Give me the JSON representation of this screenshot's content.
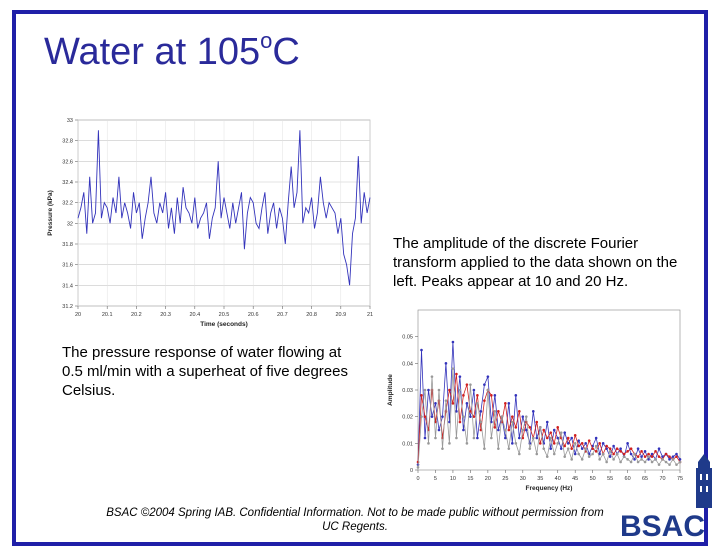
{
  "slide": {
    "title": "Water at 105",
    "title_sup": "o",
    "title_suffix": "C",
    "caption_right": "The amplitude of the discrete Fourier transform applied to the data shown on the left.  Peaks appear at 10 and 20 Hz.",
    "caption_left": "The pressure response of water flowing at 0.5 ml/min with a superheat of five degrees Celsius.",
    "footer": "BSAC ©2004 Spring IAB.  Confidential Information.  Not to be made public without permission from UC Regents.",
    "logo_text": "BSAC",
    "colors": {
      "frame": "#1f1fa8",
      "title": "#2a2a9a",
      "series_blue": "#3333bb",
      "series_red": "#d02020",
      "series_gray": "#999999",
      "logo": "#1f3a8a"
    }
  },
  "chart_data": [
    {
      "type": "line",
      "xlabel": "Time (seconds)",
      "ylabel": "Pressure (kPa)",
      "xlim": [
        20,
        21
      ],
      "ylim": [
        31.2,
        33
      ],
      "xticks": [
        "20",
        "20.1",
        "20.2",
        "20.3",
        "20.4",
        "20.5",
        "20.6",
        "20.7",
        "20.8",
        "20.9",
        "21"
      ],
      "yticks": [
        "31.2",
        "31.4",
        "31.6",
        "31.8",
        "32",
        "32.2",
        "32.4",
        "32.6",
        "32.8",
        "33"
      ],
      "grid": true,
      "series": [
        {
          "x": [
            20.0,
            20.01,
            20.02,
            20.03,
            20.04,
            20.05,
            20.06,
            20.07,
            20.08,
            20.09,
            20.1,
            20.11,
            20.12,
            20.13,
            20.14,
            20.15,
            20.16,
            20.17,
            20.18,
            20.19,
            20.2,
            20.21,
            20.22,
            20.23,
            20.24,
            20.25,
            20.26,
            20.27,
            20.28,
            20.29,
            20.3,
            20.31,
            20.32,
            20.33,
            20.34,
            20.35,
            20.36,
            20.37,
            20.38,
            20.39,
            20.4,
            20.41,
            20.42,
            20.43,
            20.44,
            20.45,
            20.46,
            20.47,
            20.48,
            20.49,
            20.5,
            20.51,
            20.52,
            20.53,
            20.54,
            20.55,
            20.56,
            20.57,
            20.58,
            20.59,
            20.6,
            20.61,
            20.62,
            20.63,
            20.64,
            20.65,
            20.66,
            20.67,
            20.68,
            20.69,
            20.7,
            20.71,
            20.72,
            20.73,
            20.74,
            20.75,
            20.76,
            20.77,
            20.78,
            20.79,
            20.8,
            20.81,
            20.82,
            20.83,
            20.84,
            20.85,
            20.86,
            20.87,
            20.88,
            20.89,
            20.9,
            20.91,
            20.92,
            20.93,
            20.94,
            20.95,
            20.96,
            20.97,
            20.98,
            20.99,
            21.0
          ],
          "values": [
            32.05,
            32.15,
            32.3,
            31.9,
            32.45,
            32.0,
            32.1,
            32.9,
            32.05,
            32.2,
            32.15,
            32.0,
            32.25,
            32.1,
            32.45,
            32.05,
            32.2,
            32.1,
            31.95,
            32.3,
            32.1,
            32.2,
            31.85,
            32.05,
            32.2,
            32.45,
            32.1,
            32.0,
            32.2,
            32.1,
            32.3,
            31.95,
            32.15,
            31.9,
            32.25,
            32.0,
            32.35,
            32.15,
            32.1,
            32.0,
            32.25,
            31.95,
            32.05,
            32.1,
            32.2,
            31.85,
            32.05,
            32.15,
            32.6,
            32.05,
            32.25,
            32.1,
            31.95,
            32.2,
            32.0,
            32.15,
            32.3,
            31.75,
            32.1,
            32.25,
            32.2,
            32.0,
            31.95,
            32.15,
            32.3,
            31.9,
            32.1,
            32.2,
            31.95,
            32.15,
            32.05,
            31.8,
            32.2,
            32.55,
            32.15,
            32.3,
            32.9,
            32.0,
            32.15,
            32.1,
            32.25,
            31.95,
            32.1,
            32.45,
            32.2,
            32.05,
            32.2,
            32.15,
            32.1,
            31.9,
            32.05,
            31.7,
            31.6,
            31.4,
            31.9,
            32.05,
            32.65,
            32.0,
            32.3,
            32.1,
            32.25
          ]
        }
      ]
    },
    {
      "type": "line",
      "xlabel": "Frequency (Hz)",
      "ylabel": "Amplitude",
      "xlim": [
        0,
        75
      ],
      "ylim": [
        0,
        0.06
      ],
      "xticks": [
        "0",
        "5",
        "10",
        "15",
        "20",
        "25",
        "30",
        "35",
        "40",
        "45",
        "50",
        "55",
        "60",
        "65",
        "70",
        "75"
      ],
      "yticks": [
        "0",
        "0.01",
        "0.02",
        "0.03",
        "0.04",
        "0.05"
      ],
      "grid": false,
      "series": [
        {
          "x": [
            0,
            1,
            2,
            3,
            4,
            5,
            6,
            7,
            8,
            9,
            10,
            11,
            12,
            13,
            14,
            15,
            16,
            17,
            18,
            19,
            20,
            21,
            22,
            23,
            24,
            25,
            26,
            27,
            28,
            29,
            30,
            31,
            32,
            33,
            34,
            35,
            36,
            37,
            38,
            39,
            40,
            41,
            42,
            43,
            44,
            45,
            46,
            47,
            48,
            49,
            50,
            51,
            52,
            53,
            54,
            55,
            56,
            57,
            58,
            59,
            60,
            61,
            62,
            63,
            64,
            65,
            66,
            67,
            68,
            69,
            70,
            71,
            72,
            73,
            74,
            75
          ],
          "values": [
            0.002,
            0.045,
            0.012,
            0.03,
            0.02,
            0.025,
            0.015,
            0.02,
            0.04,
            0.018,
            0.048,
            0.022,
            0.035,
            0.015,
            0.025,
            0.02,
            0.03,
            0.012,
            0.022,
            0.032,
            0.035,
            0.018,
            0.028,
            0.015,
            0.02,
            0.012,
            0.025,
            0.01,
            0.028,
            0.012,
            0.02,
            0.015,
            0.01,
            0.022,
            0.012,
            0.016,
            0.01,
            0.018,
            0.008,
            0.015,
            0.012,
            0.008,
            0.014,
            0.01,
            0.012,
            0.006,
            0.011,
            0.008,
            0.01,
            0.006,
            0.009,
            0.012,
            0.006,
            0.01,
            0.008,
            0.005,
            0.009,
            0.006,
            0.008,
            0.005,
            0.01,
            0.006,
            0.004,
            0.008,
            0.005,
            0.007,
            0.004,
            0.006,
            0.004,
            0.008,
            0.005,
            0.006,
            0.004,
            0.005,
            0.006,
            0.004
          ]
        },
        {
          "x": [
            0,
            1,
            2,
            3,
            4,
            5,
            6,
            7,
            8,
            9,
            10,
            11,
            12,
            13,
            14,
            15,
            16,
            17,
            18,
            19,
            20,
            21,
            22,
            23,
            24,
            25,
            26,
            27,
            28,
            29,
            30,
            31,
            32,
            33,
            34,
            35,
            36,
            37,
            38,
            39,
            40,
            41,
            42,
            43,
            44,
            45,
            46,
            47,
            48,
            49,
            50,
            51,
            52,
            53,
            54,
            55,
            56,
            57,
            58,
            59,
            60,
            61,
            62,
            63,
            64,
            65,
            66,
            67,
            68,
            69,
            70,
            71,
            72,
            73,
            74,
            75
          ],
          "values": [
            0.003,
            0.028,
            0.02,
            0.015,
            0.03,
            0.018,
            0.026,
            0.012,
            0.022,
            0.03,
            0.025,
            0.036,
            0.018,
            0.028,
            0.032,
            0.022,
            0.02,
            0.028,
            0.015,
            0.026,
            0.03,
            0.028,
            0.016,
            0.022,
            0.018,
            0.025,
            0.015,
            0.02,
            0.016,
            0.022,
            0.012,
            0.018,
            0.016,
            0.012,
            0.018,
            0.01,
            0.015,
            0.012,
            0.014,
            0.01,
            0.016,
            0.012,
            0.009,
            0.012,
            0.008,
            0.013,
            0.009,
            0.01,
            0.007,
            0.011,
            0.008,
            0.007,
            0.01,
            0.006,
            0.009,
            0.008,
            0.006,
            0.008,
            0.007,
            0.006,
            0.007,
            0.008,
            0.006,
            0.005,
            0.007,
            0.005,
            0.006,
            0.005,
            0.007,
            0.005,
            0.004,
            0.006,
            0.005,
            0.004,
            0.005,
            0.003
          ]
        },
        {
          "x": [
            0,
            1,
            2,
            3,
            4,
            5,
            6,
            7,
            8,
            9,
            10,
            11,
            12,
            13,
            14,
            15,
            16,
            17,
            18,
            19,
            20,
            21,
            22,
            23,
            24,
            25,
            26,
            27,
            28,
            29,
            30,
            31,
            32,
            33,
            34,
            35,
            36,
            37,
            38,
            39,
            40,
            41,
            42,
            43,
            44,
            45,
            46,
            47,
            48,
            49,
            50,
            51,
            52,
            53,
            54,
            55,
            56,
            57,
            58,
            59,
            60,
            61,
            62,
            63,
            64,
            65,
            66,
            67,
            68,
            69,
            70,
            71,
            72,
            73,
            74,
            75
          ],
          "values": [
            0.001,
            0.02,
            0.03,
            0.01,
            0.035,
            0.012,
            0.03,
            0.008,
            0.026,
            0.01,
            0.038,
            0.012,
            0.03,
            0.02,
            0.01,
            0.032,
            0.012,
            0.025,
            0.018,
            0.008,
            0.03,
            0.012,
            0.022,
            0.008,
            0.02,
            0.015,
            0.008,
            0.018,
            0.01,
            0.006,
            0.015,
            0.02,
            0.008,
            0.012,
            0.006,
            0.016,
            0.008,
            0.005,
            0.012,
            0.006,
            0.01,
            0.014,
            0.005,
            0.008,
            0.004,
            0.01,
            0.006,
            0.004,
            0.008,
            0.005,
            0.006,
            0.009,
            0.004,
            0.006,
            0.003,
            0.007,
            0.004,
            0.006,
            0.003,
            0.005,
            0.004,
            0.003,
            0.006,
            0.003,
            0.004,
            0.003,
            0.005,
            0.003,
            0.004,
            0.002,
            0.004,
            0.003,
            0.002,
            0.004,
            0.002,
            0.003
          ]
        }
      ]
    }
  ]
}
